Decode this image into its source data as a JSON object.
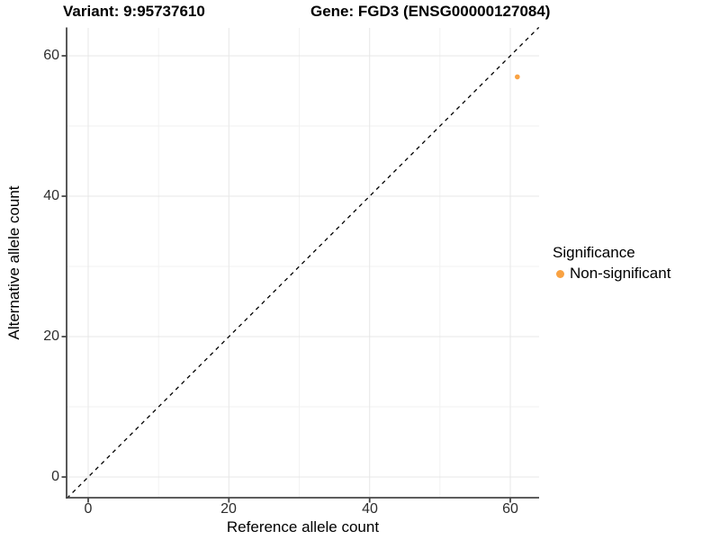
{
  "chart_data": {
    "type": "scatter",
    "title_left": "Variant: 9:95737610",
    "title_right": "Gene: FGD3 (ENSG00000127084)",
    "xlabel": "Reference allele count",
    "ylabel": "Alternative allele count",
    "x_ticks": [
      "0",
      "20",
      "40",
      "60"
    ],
    "y_ticks": [
      "0",
      "20",
      "40",
      "60"
    ],
    "xlim": [
      -3,
      64
    ],
    "ylim": [
      -3,
      64
    ],
    "grid": "on",
    "identity_line": {
      "style": "dashed",
      "color": "#000000",
      "from": [
        -3,
        -3
      ],
      "to": [
        64,
        64
      ]
    },
    "points": [
      {
        "x": 61,
        "y": 57,
        "series": "Non-significant"
      }
    ],
    "legend": {
      "title": "Significance",
      "position": "right",
      "items": [
        {
          "label": "Non-significant",
          "color": "#F9A242"
        }
      ]
    },
    "colors": {
      "axis_line": "#474747",
      "major_grid": "#E7E7E7",
      "minor_grid": "#F2F2F2",
      "point": "#F9A242"
    }
  }
}
